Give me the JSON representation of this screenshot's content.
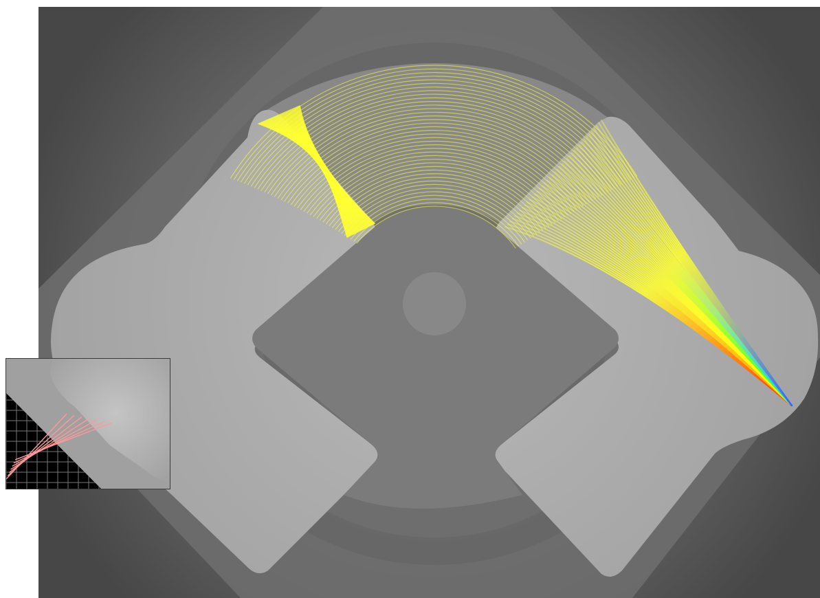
{
  "scene": {
    "description_free": true,
    "background_color": "#4d4d4d",
    "housing_color": "#6f6f6f",
    "lens_color": "#a9a9a9",
    "core_color": "#7a7a7a",
    "beam_color": "#ffff33",
    "spectrum_colors": [
      "#ff3300",
      "#ff9900",
      "#ffff00",
      "#33ff33",
      "#00ccff",
      "#3366ff"
    ],
    "ray_count": 40
  },
  "inset": {
    "background_color": "#000000",
    "grid_color": "#777777",
    "ray_color": "#ff9999",
    "ray_count": 7
  }
}
